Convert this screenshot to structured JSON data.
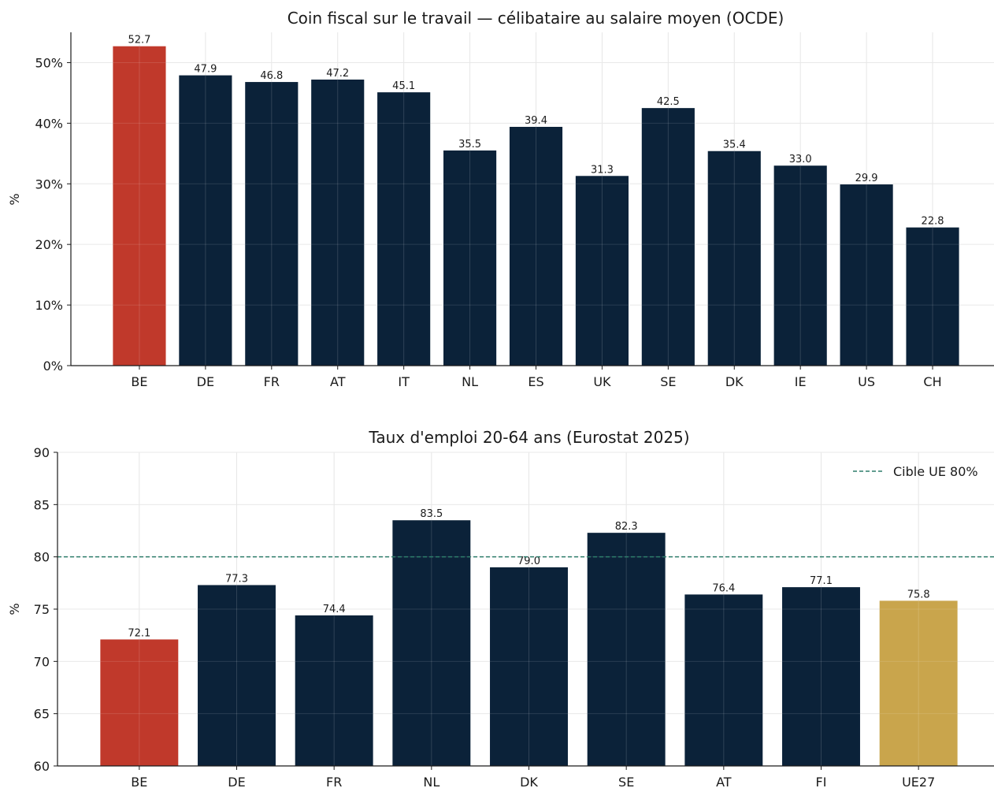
{
  "chart_data": [
    {
      "type": "bar",
      "title": "Coin fiscal sur le travail — célibataire au salaire moyen (OCDE)",
      "ylabel": "%",
      "categories": [
        "BE",
        "DE",
        "FR",
        "AT",
        "IT",
        "NL",
        "ES",
        "UK",
        "SE",
        "DK",
        "IE",
        "US",
        "CH"
      ],
      "values": [
        52.7,
        47.9,
        46.8,
        47.2,
        45.1,
        35.5,
        39.4,
        31.3,
        42.5,
        35.4,
        33.0,
        29.9,
        22.8
      ],
      "data_labels": [
        "52.7",
        "47.9",
        "46.8",
        "47.2",
        "45.1",
        "35.5",
        "39.4",
        "31.3",
        "42.5",
        "35.4",
        "33.0",
        "29.9",
        "22.8"
      ],
      "highlight": {
        "BE": "#c0392b"
      },
      "bar_color": "#0b2239",
      "ylim": [
        0,
        55
      ],
      "yticks": [
        0,
        10,
        20,
        30,
        40,
        50
      ],
      "ytick_labels": [
        "0%",
        "10%",
        "20%",
        "30%",
        "40%",
        "50%"
      ],
      "grid": true
    },
    {
      "type": "bar",
      "title": "Taux d'emploi 20-64 ans (Eurostat 2025)",
      "ylabel": "%",
      "categories": [
        "BE",
        "DE",
        "FR",
        "NL",
        "DK",
        "SE",
        "AT",
        "FI",
        "UE27"
      ],
      "values": [
        72.1,
        77.3,
        74.4,
        83.5,
        79.0,
        82.3,
        76.4,
        77.1,
        75.8
      ],
      "data_labels": [
        "72.1",
        "77.3",
        "74.4",
        "83.5",
        "79.0",
        "82.3",
        "76.4",
        "77.1",
        "75.8"
      ],
      "highlight": {
        "BE": "#c0392b",
        "UE27": "#c9a54c"
      },
      "bar_color": "#0b2239",
      "ylim": [
        60,
        90
      ],
      "yticks": [
        60,
        65,
        70,
        75,
        80,
        85,
        90
      ],
      "ytick_labels": [
        "60",
        "65",
        "70",
        "75",
        "80",
        "85",
        "90"
      ],
      "reference_line": {
        "value": 80,
        "label": "Cible UE 80%",
        "color": "#2e7d6b"
      },
      "legend_position": "top-right",
      "grid": true
    }
  ]
}
